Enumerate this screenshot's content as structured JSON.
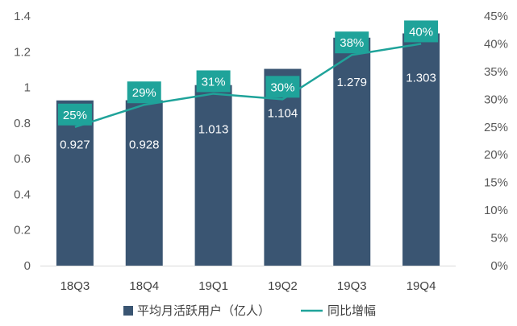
{
  "chart_data": {
    "type": "bar",
    "categories": [
      "18Q3",
      "18Q4",
      "19Q1",
      "19Q2",
      "19Q3",
      "19Q4"
    ],
    "series": [
      {
        "name": "平均月活跃用户（亿人）",
        "type": "bar",
        "axis": "left",
        "color": "#3a5572",
        "values": [
          0.927,
          0.928,
          1.013,
          1.104,
          1.279,
          1.303
        ],
        "labels": [
          "0.927",
          "0.928",
          "1.013",
          "1.104",
          "1.279",
          "1.303"
        ]
      },
      {
        "name": "同比增幅",
        "type": "line",
        "axis": "right",
        "color": "#1fa39a",
        "values": [
          25,
          29,
          31,
          30,
          38,
          40
        ],
        "labels": [
          "25%",
          "29%",
          "31%",
          "30%",
          "38%",
          "40%"
        ]
      }
    ],
    "y_left": {
      "ylim": [
        0,
        1.4
      ],
      "ticks": [
        "0",
        "0.2",
        "0.4",
        "0.6",
        "0.8",
        "1",
        "1.2",
        "1.4"
      ]
    },
    "y_right": {
      "ylim": [
        0,
        45
      ],
      "ticks": [
        "0%",
        "5%",
        "10%",
        "15%",
        "20%",
        "25%",
        "30%",
        "35%",
        "40%",
        "45%"
      ]
    },
    "grid": false,
    "legend": "bottom",
    "label_box_color": "#1fa39a"
  }
}
